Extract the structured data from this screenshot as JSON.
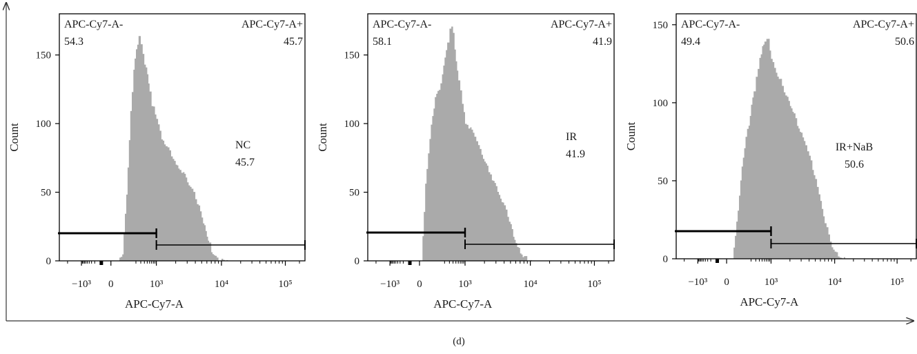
{
  "figure_caption": "(d)",
  "colors": {
    "histogram_fill": "#aaaaaa",
    "frame": "#000000"
  },
  "chart_data": [
    {
      "type": "histogram",
      "xlabel": "APC-Cy7-A",
      "ylabel": "Count",
      "x_scale": "biexponential",
      "xlim_ticks": [
        "−10³",
        "0",
        "10³",
        "10⁴",
        "10⁵"
      ],
      "x_tick_values": [
        -1000,
        0,
        1000,
        10000,
        100000
      ],
      "y_ticks": [
        0,
        50,
        100,
        150
      ],
      "ylim": [
        0,
        180
      ],
      "sample_label": "NC",
      "sample_value": "45.7",
      "gates": [
        {
          "name": "APC-Cy7-A-",
          "value": "54.3",
          "range": [
            -3000,
            1000
          ]
        },
        {
          "name": "APC-Cy7-A+",
          "value": "45.7",
          "range": [
            1000,
            262000
          ]
        }
      ],
      "histogram": {
        "x": [
          20,
          50,
          80,
          120,
          160,
          200,
          250,
          300,
          350,
          400,
          450,
          500,
          600,
          700,
          800,
          900,
          1000,
          1200,
          1400,
          1600,
          1800,
          2000,
          2300,
          2600,
          3000,
          3500,
          4000,
          4500,
          5000,
          5500,
          6000,
          6500,
          7000,
          8000,
          9000,
          10000,
          12000
        ],
        "y": [
          0,
          5,
          48,
          110,
          138,
          155,
          163,
          158,
          150,
          143,
          140,
          137,
          122,
          113,
          111,
          108,
          102,
          90,
          84,
          79,
          75,
          70,
          67,
          64,
          58,
          52,
          46,
          39,
          32,
          25,
          18,
          12,
          7,
          3,
          1,
          0.5,
          0
        ]
      }
    },
    {
      "type": "histogram",
      "xlabel": "APC-Cy7-A",
      "ylabel": "Count",
      "x_scale": "biexponential",
      "xlim_ticks": [
        "−10³",
        "0",
        "10³",
        "10⁴",
        "10⁵"
      ],
      "x_tick_values": [
        -1000,
        0,
        1000,
        10000,
        100000
      ],
      "y_ticks": [
        0,
        50,
        100,
        150
      ],
      "ylim": [
        0,
        180
      ],
      "sample_label": "IR",
      "sample_value": "41.9",
      "gates": [
        {
          "name": "APC-Cy7-A-",
          "value": "58.1",
          "range": [
            -3000,
            1000
          ]
        },
        {
          "name": "APC-Cy7-A+",
          "value": "41.9",
          "range": [
            1000,
            262000
          ]
        }
      ],
      "histogram": {
        "x": [
          5,
          20,
          50,
          80,
          120,
          160,
          200,
          250,
          300,
          350,
          400,
          450,
          500,
          600,
          700,
          800,
          900,
          1000,
          1200,
          1400,
          1600,
          1800,
          2000,
          2300,
          2600,
          3000,
          3500,
          4000,
          4500,
          5000,
          5500,
          6000,
          7000,
          8000,
          9000,
          10000
        ],
        "y": [
          0,
          55,
          100,
          118,
          125,
          135,
          148,
          160,
          168,
          172,
          165,
          155,
          145,
          132,
          124,
          115,
          108,
          101,
          96,
          91,
          84,
          78,
          72,
          66,
          60,
          54,
          46,
          40,
          33,
          26,
          19,
          12,
          6,
          3,
          1,
          0
        ]
      }
    },
    {
      "type": "histogram",
      "xlabel": "APC-Cy7-A",
      "ylabel": "Count",
      "x_scale": "biexponential",
      "xlim_ticks": [
        "−10³",
        "0",
        "10³",
        "10⁴",
        "10⁵"
      ],
      "x_tick_values": [
        -1000,
        0,
        1000,
        10000,
        100000
      ],
      "y_ticks": [
        0,
        50,
        100,
        150
      ],
      "ylim": [
        0,
        157
      ],
      "sample_label": "IR+NaB",
      "sample_value": "50.6",
      "gates": [
        {
          "name": "APC-Cy7-A-",
          "value": "49.4",
          "range": [
            -3000,
            1000
          ]
        },
        {
          "name": "APC-Cy7-A+",
          "value": "50.6",
          "range": [
            1000,
            262000
          ]
        }
      ],
      "histogram": {
        "x": [
          20,
          50,
          80,
          120,
          160,
          200,
          250,
          300,
          350,
          400,
          450,
          500,
          600,
          700,
          800,
          900,
          1000,
          1200,
          1400,
          1600,
          1800,
          2000,
          2300,
          2600,
          3000,
          3500,
          4000,
          4500,
          5000,
          6000,
          7000,
          8000,
          9000,
          10000,
          12000,
          14000
        ],
        "y": [
          0,
          30,
          60,
          78,
          86,
          98,
          108,
          116,
          122,
          128,
          132,
          135,
          138,
          142,
          140,
          134,
          128,
          120,
          114,
          107,
          103,
          99,
          92,
          86,
          80,
          73,
          66,
          58,
          50,
          36,
          24,
          15,
          8,
          4,
          1,
          0
        ]
      }
    }
  ]
}
